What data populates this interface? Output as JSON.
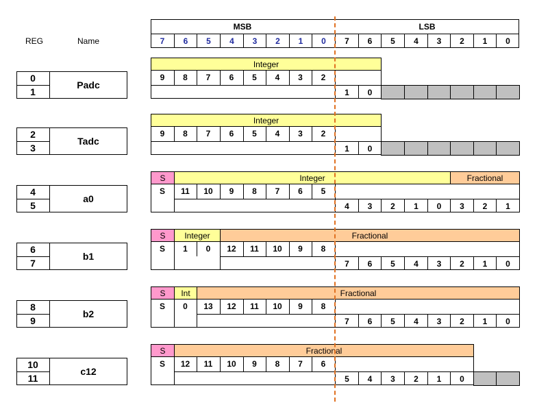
{
  "header": {
    "reg_label": "REG",
    "name_label": "Name",
    "msb_label": "MSB",
    "lsb_label": "LSB",
    "msb_bits": [
      "7",
      "6",
      "5",
      "4",
      "3",
      "2",
      "1",
      "0"
    ],
    "lsb_bits": [
      "7",
      "6",
      "5",
      "4",
      "3",
      "2",
      "1",
      "0"
    ]
  },
  "registers": [
    {
      "id": "padc",
      "name": "Padc",
      "regs": [
        "0",
        "1"
      ],
      "sign": false,
      "bands": [
        {
          "label": "Integer",
          "color": "yellow",
          "start": 0,
          "end": 10
        }
      ],
      "row1": [
        {
          "col": 0,
          "text": "9"
        },
        {
          "col": 1,
          "text": "8"
        },
        {
          "col": 2,
          "text": "7"
        },
        {
          "col": 3,
          "text": "6"
        },
        {
          "col": 4,
          "text": "5"
        },
        {
          "col": 5,
          "text": "4"
        },
        {
          "col": 6,
          "text": "3"
        },
        {
          "col": 7,
          "text": "2"
        }
      ],
      "row2": [
        {
          "col": 8,
          "text": "1"
        },
        {
          "col": 9,
          "text": "0"
        }
      ],
      "row2_span_start": 0,
      "gray": [
        10,
        11,
        12,
        13,
        14,
        15
      ],
      "row1_end": 10
    },
    {
      "id": "tadc",
      "name": "Tadc",
      "regs": [
        "2",
        "3"
      ],
      "sign": false,
      "bands": [
        {
          "label": "Integer",
          "color": "yellow",
          "start": 0,
          "end": 10
        }
      ],
      "row1": [
        {
          "col": 0,
          "text": "9"
        },
        {
          "col": 1,
          "text": "8"
        },
        {
          "col": 2,
          "text": "7"
        },
        {
          "col": 3,
          "text": "6"
        },
        {
          "col": 4,
          "text": "5"
        },
        {
          "col": 5,
          "text": "4"
        },
        {
          "col": 6,
          "text": "3"
        },
        {
          "col": 7,
          "text": "2"
        }
      ],
      "row2": [
        {
          "col": 8,
          "text": "1"
        },
        {
          "col": 9,
          "text": "0"
        }
      ],
      "row2_span_start": 0,
      "gray": [
        10,
        11,
        12,
        13,
        14,
        15
      ],
      "row1_end": 10
    },
    {
      "id": "a0",
      "name": "a0",
      "regs": [
        "4",
        "5"
      ],
      "sign": true,
      "sign_label": "S",
      "bands": [
        {
          "label": "Integer",
          "color": "yellow",
          "start": 1,
          "end": 13
        },
        {
          "label": "Fractional",
          "color": "peach",
          "start": 13,
          "end": 16
        }
      ],
      "row1": [
        {
          "col": 0,
          "text": "S"
        },
        {
          "col": 1,
          "text": "11"
        },
        {
          "col": 2,
          "text": "10"
        },
        {
          "col": 3,
          "text": "9"
        },
        {
          "col": 4,
          "text": "8"
        },
        {
          "col": 5,
          "text": "7"
        },
        {
          "col": 6,
          "text": "6"
        },
        {
          "col": 7,
          "text": "5"
        }
      ],
      "row2": [
        {
          "col": 8,
          "text": "4"
        },
        {
          "col": 9,
          "text": "3"
        },
        {
          "col": 10,
          "text": "2"
        },
        {
          "col": 11,
          "text": "1"
        },
        {
          "col": 12,
          "text": "0"
        },
        {
          "col": 13,
          "text": "3"
        },
        {
          "col": 14,
          "text": "2"
        },
        {
          "col": 15,
          "text": "1"
        }
      ],
      "row2_span_start": 1,
      "gray": [],
      "row1_end": 16
    },
    {
      "id": "b1",
      "name": "b1",
      "regs": [
        "6",
        "7"
      ],
      "sign": true,
      "sign_label": "S",
      "bands": [
        {
          "label": "Integer",
          "color": "yellow",
          "start": 1,
          "end": 3
        },
        {
          "label": "Fractional",
          "color": "peach",
          "start": 3,
          "end": 16
        }
      ],
      "row1": [
        {
          "col": 0,
          "text": "S"
        },
        {
          "col": 1,
          "text": "1"
        },
        {
          "col": 2,
          "text": "0"
        },
        {
          "col": 3,
          "text": "12"
        },
        {
          "col": 4,
          "text": "11"
        },
        {
          "col": 5,
          "text": "10"
        },
        {
          "col": 6,
          "text": "9"
        },
        {
          "col": 7,
          "text": "8"
        }
      ],
      "row2": [
        {
          "col": 8,
          "text": "7"
        },
        {
          "col": 9,
          "text": "6"
        },
        {
          "col": 10,
          "text": "5"
        },
        {
          "col": 11,
          "text": "4"
        },
        {
          "col": 12,
          "text": "3"
        },
        {
          "col": 13,
          "text": "2"
        },
        {
          "col": 14,
          "text": "1"
        },
        {
          "col": 15,
          "text": "0"
        }
      ],
      "row2_span_start": 3,
      "gray": [],
      "row1_end": 16
    },
    {
      "id": "b2",
      "name": "b2",
      "regs": [
        "8",
        "9"
      ],
      "sign": true,
      "sign_label": "S",
      "bands": [
        {
          "label": "Int",
          "color": "yellow",
          "start": 1,
          "end": 2
        },
        {
          "label": "Fractional",
          "color": "peach",
          "start": 2,
          "end": 16
        }
      ],
      "row1": [
        {
          "col": 0,
          "text": "S"
        },
        {
          "col": 1,
          "text": "0"
        },
        {
          "col": 2,
          "text": "13"
        },
        {
          "col": 3,
          "text": "12"
        },
        {
          "col": 4,
          "text": "11"
        },
        {
          "col": 5,
          "text": "10"
        },
        {
          "col": 6,
          "text": "9"
        },
        {
          "col": 7,
          "text": "8"
        }
      ],
      "row2": [
        {
          "col": 8,
          "text": "7"
        },
        {
          "col": 9,
          "text": "6"
        },
        {
          "col": 10,
          "text": "5"
        },
        {
          "col": 11,
          "text": "4"
        },
        {
          "col": 12,
          "text": "3"
        },
        {
          "col": 13,
          "text": "2"
        },
        {
          "col": 14,
          "text": "1"
        },
        {
          "col": 15,
          "text": "0"
        }
      ],
      "row2_span_start": 2,
      "gray": [],
      "row1_end": 16
    },
    {
      "id": "c12",
      "name": "c12",
      "regs": [
        "10",
        "11"
      ],
      "sign": true,
      "sign_label": "S",
      "bands": [
        {
          "label": "Fractional",
          "color": "peach",
          "start": 1,
          "end": 14
        }
      ],
      "row1": [
        {
          "col": 0,
          "text": "S"
        },
        {
          "col": 1,
          "text": "12"
        },
        {
          "col": 2,
          "text": "11"
        },
        {
          "col": 3,
          "text": "10"
        },
        {
          "col": 4,
          "text": "9"
        },
        {
          "col": 5,
          "text": "8"
        },
        {
          "col": 6,
          "text": "7"
        },
        {
          "col": 7,
          "text": "6"
        }
      ],
      "row2": [
        {
          "col": 8,
          "text": "5"
        },
        {
          "col": 9,
          "text": "4"
        },
        {
          "col": 10,
          "text": "3"
        },
        {
          "col": 11,
          "text": "2"
        },
        {
          "col": 12,
          "text": "1"
        },
        {
          "col": 13,
          "text": "0"
        }
      ],
      "row2_span_start": 1,
      "gray": [
        14,
        15
      ],
      "row1_end": 14
    }
  ]
}
